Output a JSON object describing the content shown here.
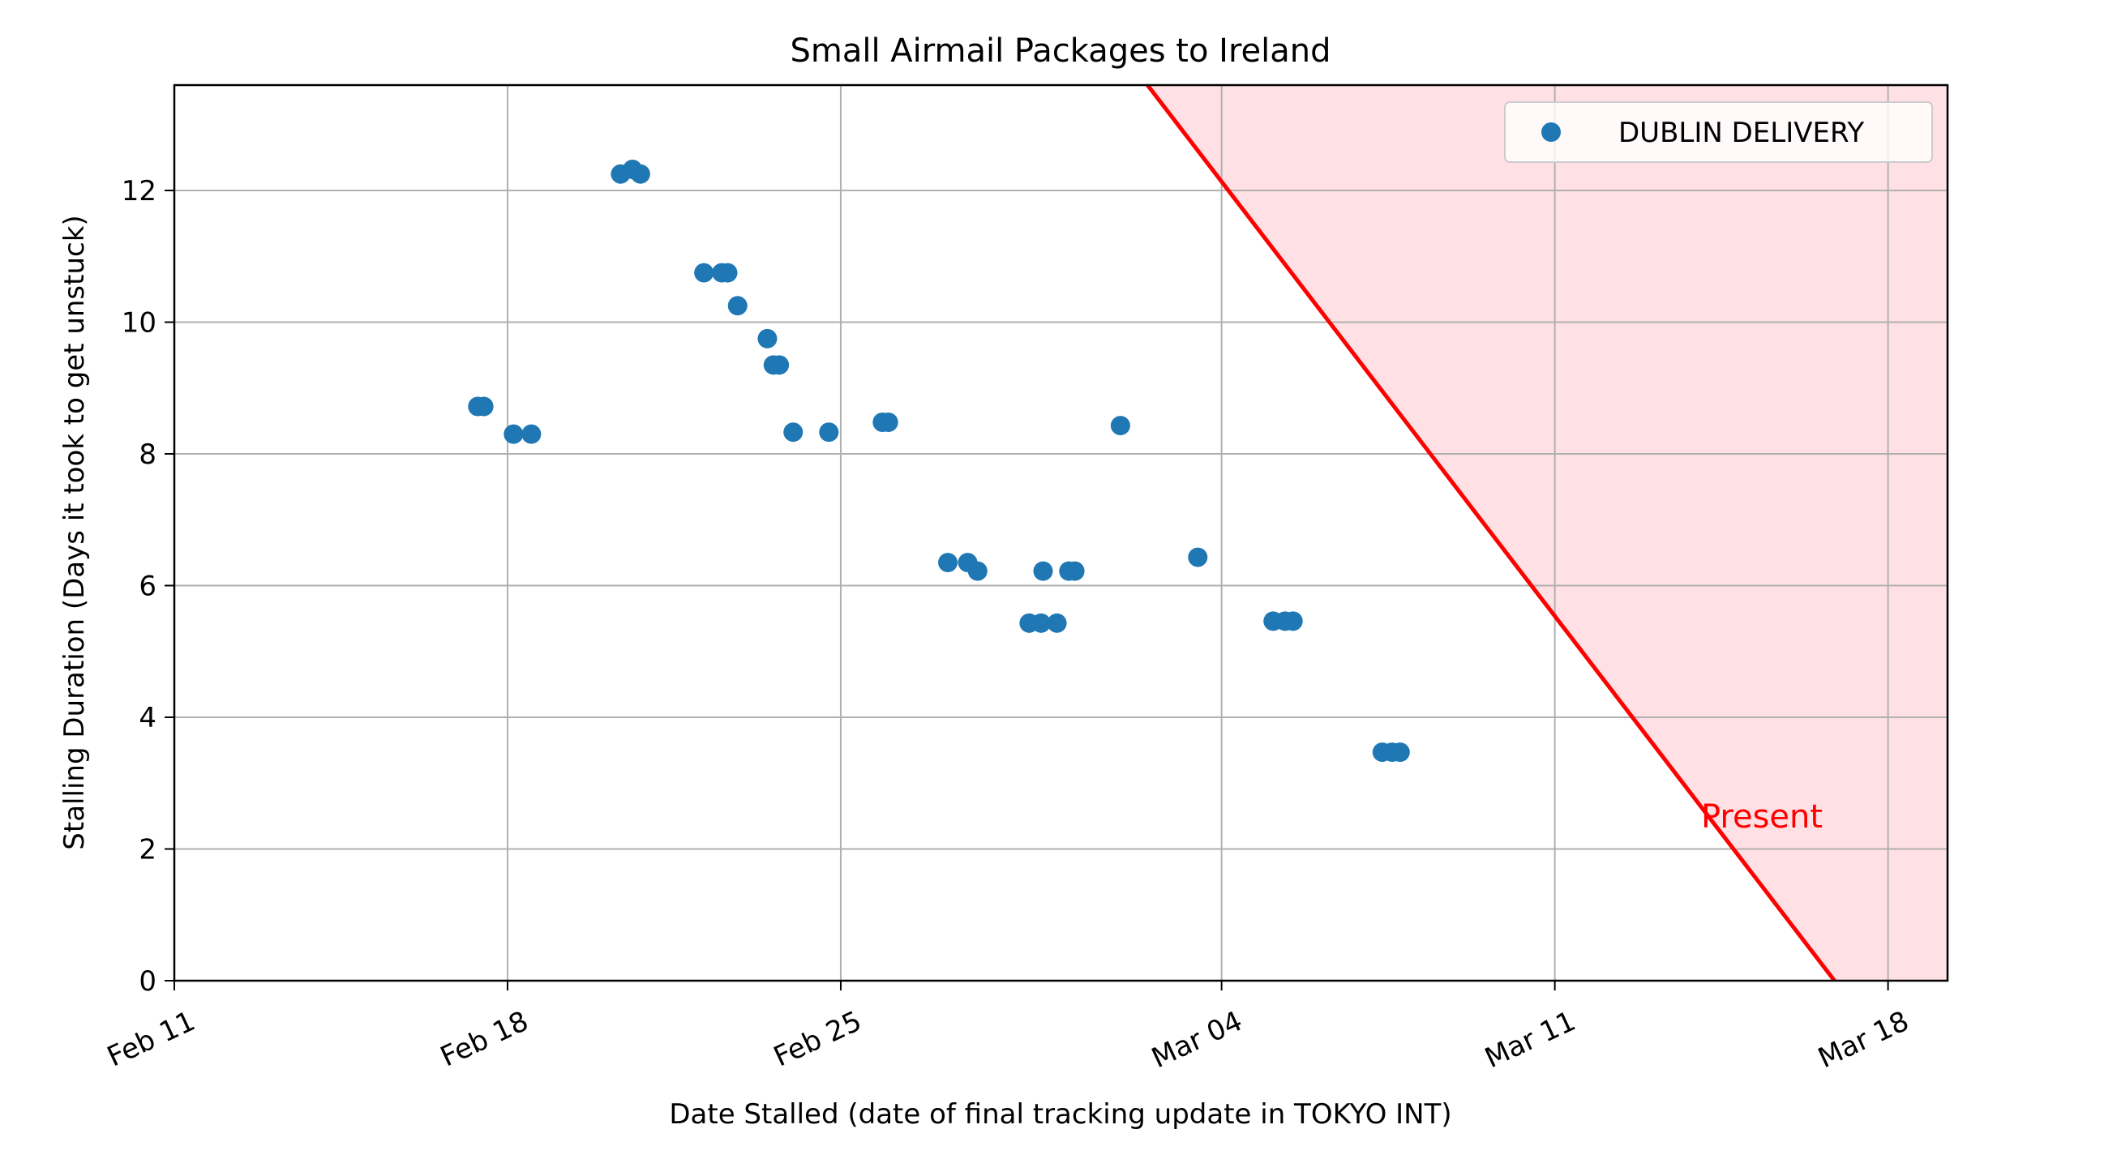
{
  "chart_data": {
    "type": "scatter",
    "title": "Small Airmail Packages to Ireland",
    "xlabel": "Date Stalled (date of final tracking update in TOKYO INT)",
    "ylabel": "Stalling Duration (Days it took to get unstuck)",
    "x_is_date": true,
    "xlim": [
      "2024-02-11",
      "2024-03-19T06:00"
    ],
    "ylim": [
      0,
      13.6
    ],
    "xticks": [
      {
        "date": "2024-02-11",
        "label": "Feb 11"
      },
      {
        "date": "2024-02-18",
        "label": "Feb 18"
      },
      {
        "date": "2024-02-25",
        "label": "Feb 25"
      },
      {
        "date": "2024-03-04",
        "label": "Mar 04"
      },
      {
        "date": "2024-03-11",
        "label": "Mar 11"
      },
      {
        "date": "2024-03-18",
        "label": "Mar 18"
      }
    ],
    "yticks": [
      0,
      2,
      4,
      6,
      8,
      10,
      12
    ],
    "grid": true,
    "legend": {
      "position": "top-right",
      "entries": [
        "DUBLIN DELIVERY"
      ]
    },
    "series": [
      {
        "name": "DUBLIN DELIVERY",
        "color": "#1f77b4",
        "points": [
          {
            "x": "2024-02-17T09:00",
            "y": 8.72
          },
          {
            "x": "2024-02-17T12:00",
            "y": 8.72
          },
          {
            "x": "2024-02-18T03:00",
            "y": 8.3
          },
          {
            "x": "2024-02-18T12:00",
            "y": 8.3
          },
          {
            "x": "2024-02-20T09:00",
            "y": 12.25
          },
          {
            "x": "2024-02-20T15:00",
            "y": 12.32
          },
          {
            "x": "2024-02-20T19:00",
            "y": 12.25
          },
          {
            "x": "2024-02-22T03:00",
            "y": 10.75
          },
          {
            "x": "2024-02-22T12:00",
            "y": 10.75
          },
          {
            "x": "2024-02-22T15:00",
            "y": 10.75
          },
          {
            "x": "2024-02-22T20:00",
            "y": 10.25
          },
          {
            "x": "2024-02-23T11:00",
            "y": 9.75
          },
          {
            "x": "2024-02-23T14:00",
            "y": 9.35
          },
          {
            "x": "2024-02-23T17:00",
            "y": 9.35
          },
          {
            "x": "2024-02-24T00:00",
            "y": 8.33
          },
          {
            "x": "2024-02-24T18:00",
            "y": 8.33
          },
          {
            "x": "2024-02-25T21:00",
            "y": 8.48
          },
          {
            "x": "2024-02-26T00:00",
            "y": 8.48
          },
          {
            "x": "2024-02-27T06:00",
            "y": 6.35
          },
          {
            "x": "2024-02-27T16:00",
            "y": 6.35
          },
          {
            "x": "2024-02-27T21:00",
            "y": 6.22
          },
          {
            "x": "2024-02-28T23:00",
            "y": 5.43
          },
          {
            "x": "2024-02-29T05:00",
            "y": 5.43
          },
          {
            "x": "2024-02-29T06:00",
            "y": 6.22
          },
          {
            "x": "2024-02-29T13:00",
            "y": 5.43
          },
          {
            "x": "2024-02-29T19:00",
            "y": 6.22
          },
          {
            "x": "2024-02-29T22:00",
            "y": 6.22
          },
          {
            "x": "2024-03-01T21:00",
            "y": 8.43
          },
          {
            "x": "2024-03-03T12:00",
            "y": 6.43
          },
          {
            "x": "2024-03-05T02:00",
            "y": 5.46
          },
          {
            "x": "2024-03-05T08:00",
            "y": 5.46
          },
          {
            "x": "2024-03-05T12:00",
            "y": 5.46
          },
          {
            "x": "2024-03-07T09:00",
            "y": 3.47
          },
          {
            "x": "2024-03-07T14:00",
            "y": 3.47
          },
          {
            "x": "2024-03-07T18:00",
            "y": 3.47
          }
        ]
      }
    ],
    "present_line": {
      "label": "Present",
      "color": "#ff0000",
      "fill_color": "#ffe0e4",
      "points": [
        {
          "x": "2024-03-02T10:40",
          "y": 13.6
        },
        {
          "x": "2024-03-16T21:00",
          "y": 0
        }
      ]
    }
  }
}
